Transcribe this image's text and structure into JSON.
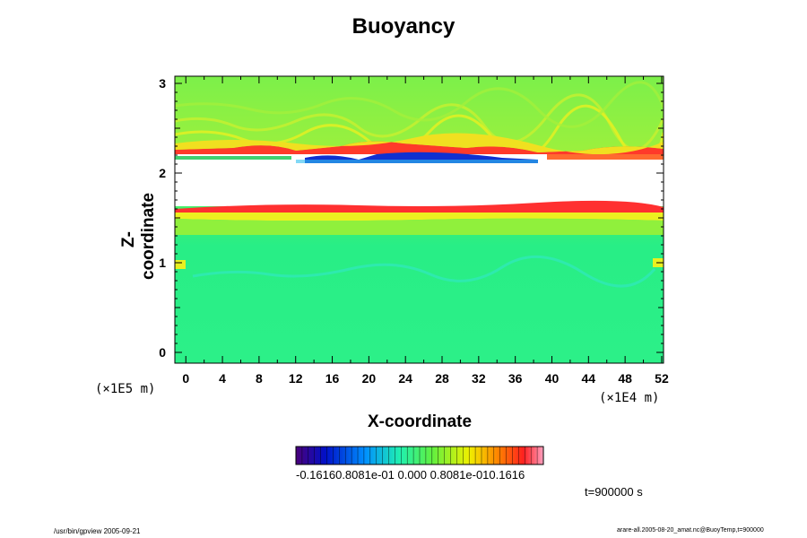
{
  "chart_data": {
    "type": "heatmap",
    "title": "Buoyancy",
    "xlabel": "X-coordinate",
    "ylabel": "Z-coordinate",
    "x_unit": "(×1E4 m)",
    "y_unit": "(×1E5 m)",
    "x_ticks": [
      "0",
      "4",
      "8",
      "12",
      "16",
      "20",
      "24",
      "28",
      "32",
      "36",
      "40",
      "44",
      "48",
      "52"
    ],
    "y_ticks": [
      "0",
      "1",
      "2",
      "3"
    ],
    "xlim": [
      -1.2,
      52.2
    ],
    "ylim": [
      -0.12,
      3.08
    ],
    "colorbar": {
      "min": -0.1616,
      "max": 0.1616,
      "tick_labels_text": "-0.16160.8081e-01 0.000 0.8081e-010.1616"
    },
    "colors": {
      "background_field": "#7cf048",
      "lower_field": "#2ef08a",
      "blank_band": "#ffffff",
      "positive_edge": "#ff2a2a",
      "negative_edge": "#0a2acc"
    }
  },
  "annotations": {
    "time": "t=900000 s",
    "footer_left": "/usr/bin/gpview 2005-09-21",
    "footer_right": "arare-all.2005-08-20_amat.nc@BuoyTemp,t=900000"
  }
}
